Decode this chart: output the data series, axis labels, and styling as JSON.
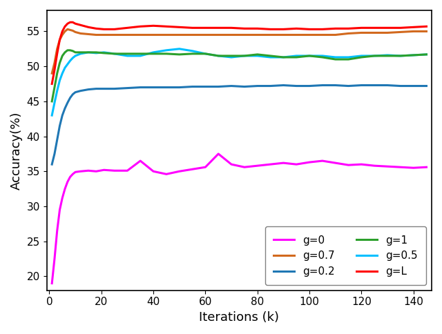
{
  "title": "",
  "xlabel": "Iterations (k)",
  "ylabel": "Accuracy(%)",
  "xlim": [
    -1,
    147
  ],
  "ylim": [
    18,
    58
  ],
  "xticks": [
    0,
    20,
    40,
    60,
    80,
    100,
    120,
    140
  ],
  "yticks": [
    20,
    25,
    30,
    35,
    40,
    45,
    50,
    55
  ],
  "series": {
    "g=0": {
      "color": "#ff00ff",
      "x": [
        1,
        2,
        3,
        4,
        5,
        6,
        7,
        8,
        9,
        10,
        12,
        15,
        18,
        21,
        25,
        30,
        35,
        40,
        45,
        50,
        55,
        60,
        65,
        70,
        75,
        80,
        85,
        90,
        95,
        100,
        105,
        110,
        115,
        120,
        125,
        130,
        135,
        140,
        145
      ],
      "y": [
        19.0,
        22.5,
        26.5,
        29.5,
        31.2,
        32.5,
        33.5,
        34.2,
        34.6,
        34.9,
        35.0,
        35.1,
        35.0,
        35.2,
        35.1,
        35.1,
        36.5,
        35.0,
        34.6,
        35.0,
        35.3,
        35.6,
        37.5,
        36.0,
        35.6,
        35.8,
        36.0,
        36.2,
        36.0,
        36.3,
        36.5,
        36.2,
        35.9,
        36.0,
        35.8,
        35.7,
        35.6,
        35.5,
        35.6
      ]
    },
    "g=0.2": {
      "color": "#1f77b4",
      "x": [
        1,
        2,
        3,
        4,
        5,
        6,
        7,
        8,
        9,
        10,
        12,
        15,
        18,
        21,
        25,
        30,
        35,
        40,
        45,
        50,
        55,
        60,
        65,
        70,
        75,
        80,
        85,
        90,
        95,
        100,
        105,
        110,
        115,
        120,
        125,
        130,
        135,
        140,
        145
      ],
      "y": [
        36.0,
        37.5,
        39.5,
        41.5,
        43.0,
        44.0,
        44.8,
        45.5,
        46.0,
        46.3,
        46.5,
        46.7,
        46.8,
        46.8,
        46.8,
        46.9,
        47.0,
        47.0,
        47.0,
        47.0,
        47.1,
        47.1,
        47.1,
        47.2,
        47.1,
        47.2,
        47.2,
        47.3,
        47.2,
        47.2,
        47.3,
        47.3,
        47.2,
        47.3,
        47.3,
        47.3,
        47.2,
        47.2,
        47.2
      ]
    },
    "g=0.5": {
      "color": "#00bfff",
      "x": [
        1,
        2,
        3,
        4,
        5,
        6,
        7,
        8,
        9,
        10,
        12,
        15,
        18,
        21,
        25,
        30,
        35,
        40,
        45,
        50,
        55,
        60,
        65,
        70,
        75,
        80,
        85,
        90,
        95,
        100,
        105,
        110,
        115,
        120,
        125,
        130,
        135,
        140,
        145
      ],
      "y": [
        43.0,
        44.8,
        46.5,
        48.0,
        49.0,
        49.8,
        50.3,
        50.8,
        51.2,
        51.5,
        51.8,
        52.0,
        51.9,
        52.0,
        51.8,
        51.5,
        51.5,
        52.0,
        52.3,
        52.5,
        52.2,
        51.8,
        51.5,
        51.3,
        51.5,
        51.5,
        51.3,
        51.3,
        51.5,
        51.5,
        51.5,
        51.3,
        51.3,
        51.5,
        51.5,
        51.6,
        51.5,
        51.6,
        51.7
      ]
    },
    "g=0.7": {
      "color": "#d2691e",
      "x": [
        1,
        2,
        3,
        4,
        5,
        6,
        7,
        8,
        9,
        10,
        12,
        15,
        18,
        21,
        25,
        30,
        35,
        40,
        45,
        50,
        55,
        60,
        65,
        70,
        75,
        80,
        85,
        90,
        95,
        100,
        105,
        110,
        115,
        120,
        125,
        130,
        135,
        140,
        145
      ],
      "y": [
        49.0,
        50.5,
        52.5,
        53.8,
        54.5,
        55.0,
        55.3,
        55.2,
        55.1,
        54.9,
        54.7,
        54.6,
        54.5,
        54.5,
        54.5,
        54.5,
        54.5,
        54.5,
        54.5,
        54.5,
        54.5,
        54.5,
        54.5,
        54.5,
        54.5,
        54.5,
        54.5,
        54.5,
        54.5,
        54.5,
        54.5,
        54.5,
        54.7,
        54.8,
        54.8,
        54.8,
        54.9,
        55.0,
        55.0
      ]
    },
    "g=1": {
      "color": "#2ca02c",
      "x": [
        1,
        2,
        3,
        4,
        5,
        6,
        7,
        8,
        9,
        10,
        12,
        15,
        18,
        21,
        25,
        30,
        35,
        40,
        45,
        50,
        55,
        60,
        65,
        70,
        75,
        80,
        85,
        90,
        95,
        100,
        105,
        110,
        115,
        120,
        125,
        130,
        135,
        140,
        145
      ],
      "y": [
        45.0,
        47.0,
        49.0,
        50.5,
        51.5,
        52.0,
        52.3,
        52.3,
        52.2,
        52.0,
        52.0,
        52.0,
        52.0,
        51.9,
        51.8,
        51.8,
        51.8,
        51.8,
        51.8,
        51.7,
        51.8,
        51.8,
        51.5,
        51.5,
        51.5,
        51.7,
        51.5,
        51.3,
        51.3,
        51.5,
        51.3,
        51.0,
        51.0,
        51.3,
        51.5,
        51.5,
        51.5,
        51.6,
        51.7
      ]
    },
    "g=L": {
      "color": "#ff0000",
      "x": [
        1,
        2,
        3,
        4,
        5,
        6,
        7,
        8,
        9,
        10,
        12,
        15,
        18,
        21,
        25,
        30,
        35,
        40,
        45,
        50,
        55,
        60,
        65,
        70,
        75,
        80,
        85,
        90,
        95,
        100,
        105,
        110,
        115,
        120,
        125,
        130,
        135,
        140,
        145
      ],
      "y": [
        47.5,
        49.5,
        51.8,
        53.8,
        55.0,
        55.7,
        56.1,
        56.3,
        56.3,
        56.1,
        55.9,
        55.6,
        55.4,
        55.3,
        55.3,
        55.5,
        55.7,
        55.8,
        55.7,
        55.6,
        55.5,
        55.5,
        55.5,
        55.5,
        55.4,
        55.4,
        55.3,
        55.3,
        55.4,
        55.3,
        55.3,
        55.4,
        55.4,
        55.5,
        55.5,
        55.5,
        55.5,
        55.6,
        55.7
      ]
    }
  },
  "legend_order": [
    "g=0",
    "g=0.7",
    "g=0.2",
    "g=1",
    "g=0.5",
    "g=L"
  ],
  "legend_loc": "lower right",
  "legend_ncol": 2,
  "linewidth": 2.2,
  "figsize": [
    6.4,
    4.84
  ],
  "dpi": 100
}
